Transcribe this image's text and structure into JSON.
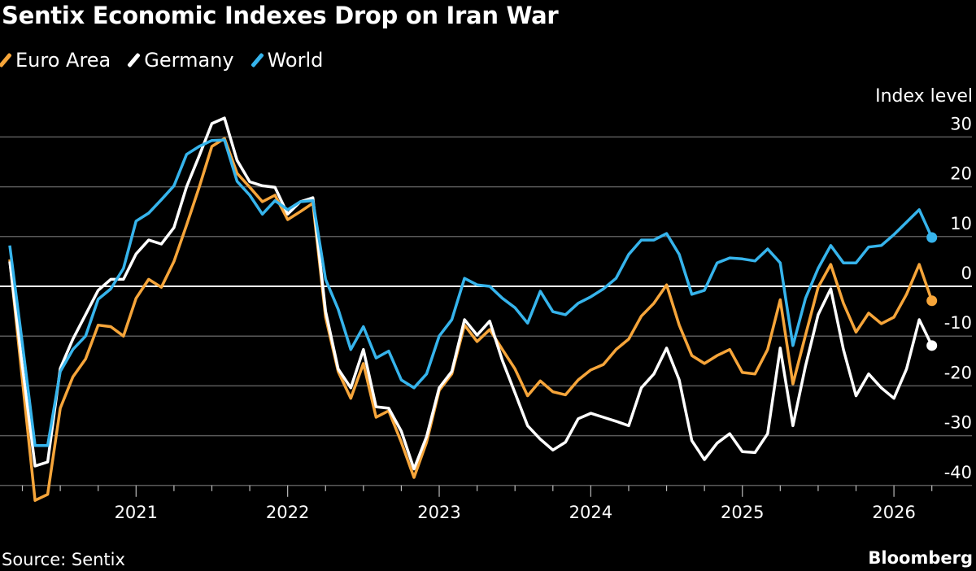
{
  "chart_data": {
    "type": "line",
    "title": "Sentix Economic Indexes Drop on Iran War",
    "ylabel": "Index level",
    "source": "Source: Sentix",
    "brand": "Bloomberg",
    "ylim": [
      -40,
      30
    ],
    "yticks": [
      30,
      20,
      10,
      0,
      -10,
      -20,
      -30,
      -40
    ],
    "xticks": [
      "2021",
      "2022",
      "2023",
      "2024",
      "2025",
      "2026"
    ],
    "grid": true,
    "legend_placement": "top-left",
    "x": [
      "2020-03",
      "2020-04",
      "2020-05",
      "2020-06",
      "2020-07",
      "2020-08",
      "2020-09",
      "2020-10",
      "2020-11",
      "2020-12",
      "2021-01",
      "2021-02",
      "2021-03",
      "2021-04",
      "2021-05",
      "2021-06",
      "2021-07",
      "2021-08",
      "2021-09",
      "2021-10",
      "2021-11",
      "2021-12",
      "2022-01",
      "2022-02",
      "2022-03",
      "2022-04",
      "2022-05",
      "2022-06",
      "2022-07",
      "2022-08",
      "2022-09",
      "2022-10",
      "2022-11",
      "2022-12",
      "2023-01",
      "2023-02",
      "2023-03",
      "2023-04",
      "2023-05",
      "2023-06",
      "2023-07",
      "2023-08",
      "2023-09",
      "2023-10",
      "2023-11",
      "2023-12",
      "2024-01",
      "2024-02",
      "2024-03",
      "2024-04",
      "2024-05",
      "2024-06",
      "2024-07",
      "2024-08",
      "2024-09",
      "2024-10",
      "2024-11",
      "2024-12",
      "2025-01",
      "2025-02",
      "2025-03",
      "2025-04",
      "2025-05",
      "2025-06",
      "2025-07",
      "2025-08",
      "2025-09",
      "2025-10",
      "2025-11",
      "2025-12",
      "2026-01",
      "2026-02",
      "2026-03",
      "2026-04"
    ],
    "series": [
      {
        "name": "Euro Area",
        "color": "#f6a53a",
        "values": [
          5.4,
          -18.8,
          -43,
          -41.8,
          -24.5,
          -18.2,
          -14.6,
          -7.8,
          -8.1,
          -10,
          -2.4,
          1.4,
          -0.2,
          5,
          12.3,
          19.9,
          28.1,
          29.7,
          22.7,
          19.9,
          17,
          18.3,
          13.4,
          15,
          16.7,
          -6.2,
          -17.1,
          -22.5,
          -15.5,
          -26.3,
          -25,
          -31.3,
          -38.4,
          -31.3,
          -20.9,
          -17.6,
          -7.8,
          -11.1,
          -8.7,
          -12.7,
          -16.6,
          -22,
          -19,
          -21.2,
          -21.8,
          -18.8,
          -16.8,
          -15.7,
          -12.7,
          -10.6,
          -6,
          -3.4,
          0.3,
          -7.8,
          -13.9,
          -15.5,
          -13.9,
          -12.7,
          -17.3,
          -17.6,
          -12.7,
          -2.7,
          -19.6,
          -9.8,
          -0.2,
          4.4,
          -3.4,
          -9.2,
          -5.4,
          -7.5,
          -6.2,
          -1.6,
          4.4,
          -2.9
        ]
      },
      {
        "name": "Germany",
        "color": "#ffffff",
        "values": [
          5,
          -16,
          -36.1,
          -35.3,
          -16.5,
          -10.6,
          -5.7,
          -0.8,
          1.4,
          1.4,
          6.5,
          9.3,
          8.5,
          11.8,
          20,
          26.2,
          32.7,
          33.8,
          25.3,
          21,
          20.2,
          19.9,
          14.5,
          17,
          17.8,
          -5,
          -16.6,
          -20.4,
          -12.7,
          -24.2,
          -24.5,
          -29.1,
          -36.7,
          -30.2,
          -20.4,
          -17.1,
          -6.7,
          -9.8,
          -7,
          -14.9,
          -21.4,
          -28,
          -30.7,
          -32.9,
          -31.3,
          -26.6,
          -25.5,
          -26.3,
          -27.1,
          -28,
          -20.4,
          -17.6,
          -12.4,
          -18.8,
          -31,
          -34.8,
          -31.5,
          -29.6,
          -33.2,
          -33.4,
          -29.6,
          -12.4,
          -28,
          -16,
          -5.7,
          -0.5,
          -12.7,
          -22,
          -17.6,
          -20.4,
          -22.5,
          -16.6,
          -6.7,
          -11.9
        ]
      },
      {
        "name": "World",
        "color": "#36b4ec",
        "values": [
          8.2,
          -11.5,
          -32,
          -32,
          -17.1,
          -12.7,
          -10,
          -2.6,
          -0.5,
          3.6,
          13.1,
          14.7,
          17.4,
          20.2,
          26.5,
          28.1,
          29.3,
          29.4,
          21.1,
          18.3,
          14.5,
          17.2,
          15.4,
          17,
          17.2,
          1.4,
          -4.6,
          -12.7,
          -8.1,
          -14.4,
          -13,
          -18.8,
          -20.4,
          -17.6,
          -10,
          -6.7,
          1.6,
          0.3,
          0,
          -2.4,
          -4.3,
          -7.4,
          -1,
          -5.1,
          -5.7,
          -3.4,
          -2.1,
          -0.5,
          1.6,
          6.4,
          9.3,
          9.3,
          10.6,
          6.4,
          -1.6,
          -0.8,
          4.7,
          5.7,
          5.5,
          5.1,
          7.5,
          4.7,
          -11.9,
          -2.4,
          3.6,
          8.2,
          4.7,
          4.7,
          7.9,
          8.2,
          10.4,
          12.9,
          15.4,
          9.8
        ]
      }
    ]
  }
}
